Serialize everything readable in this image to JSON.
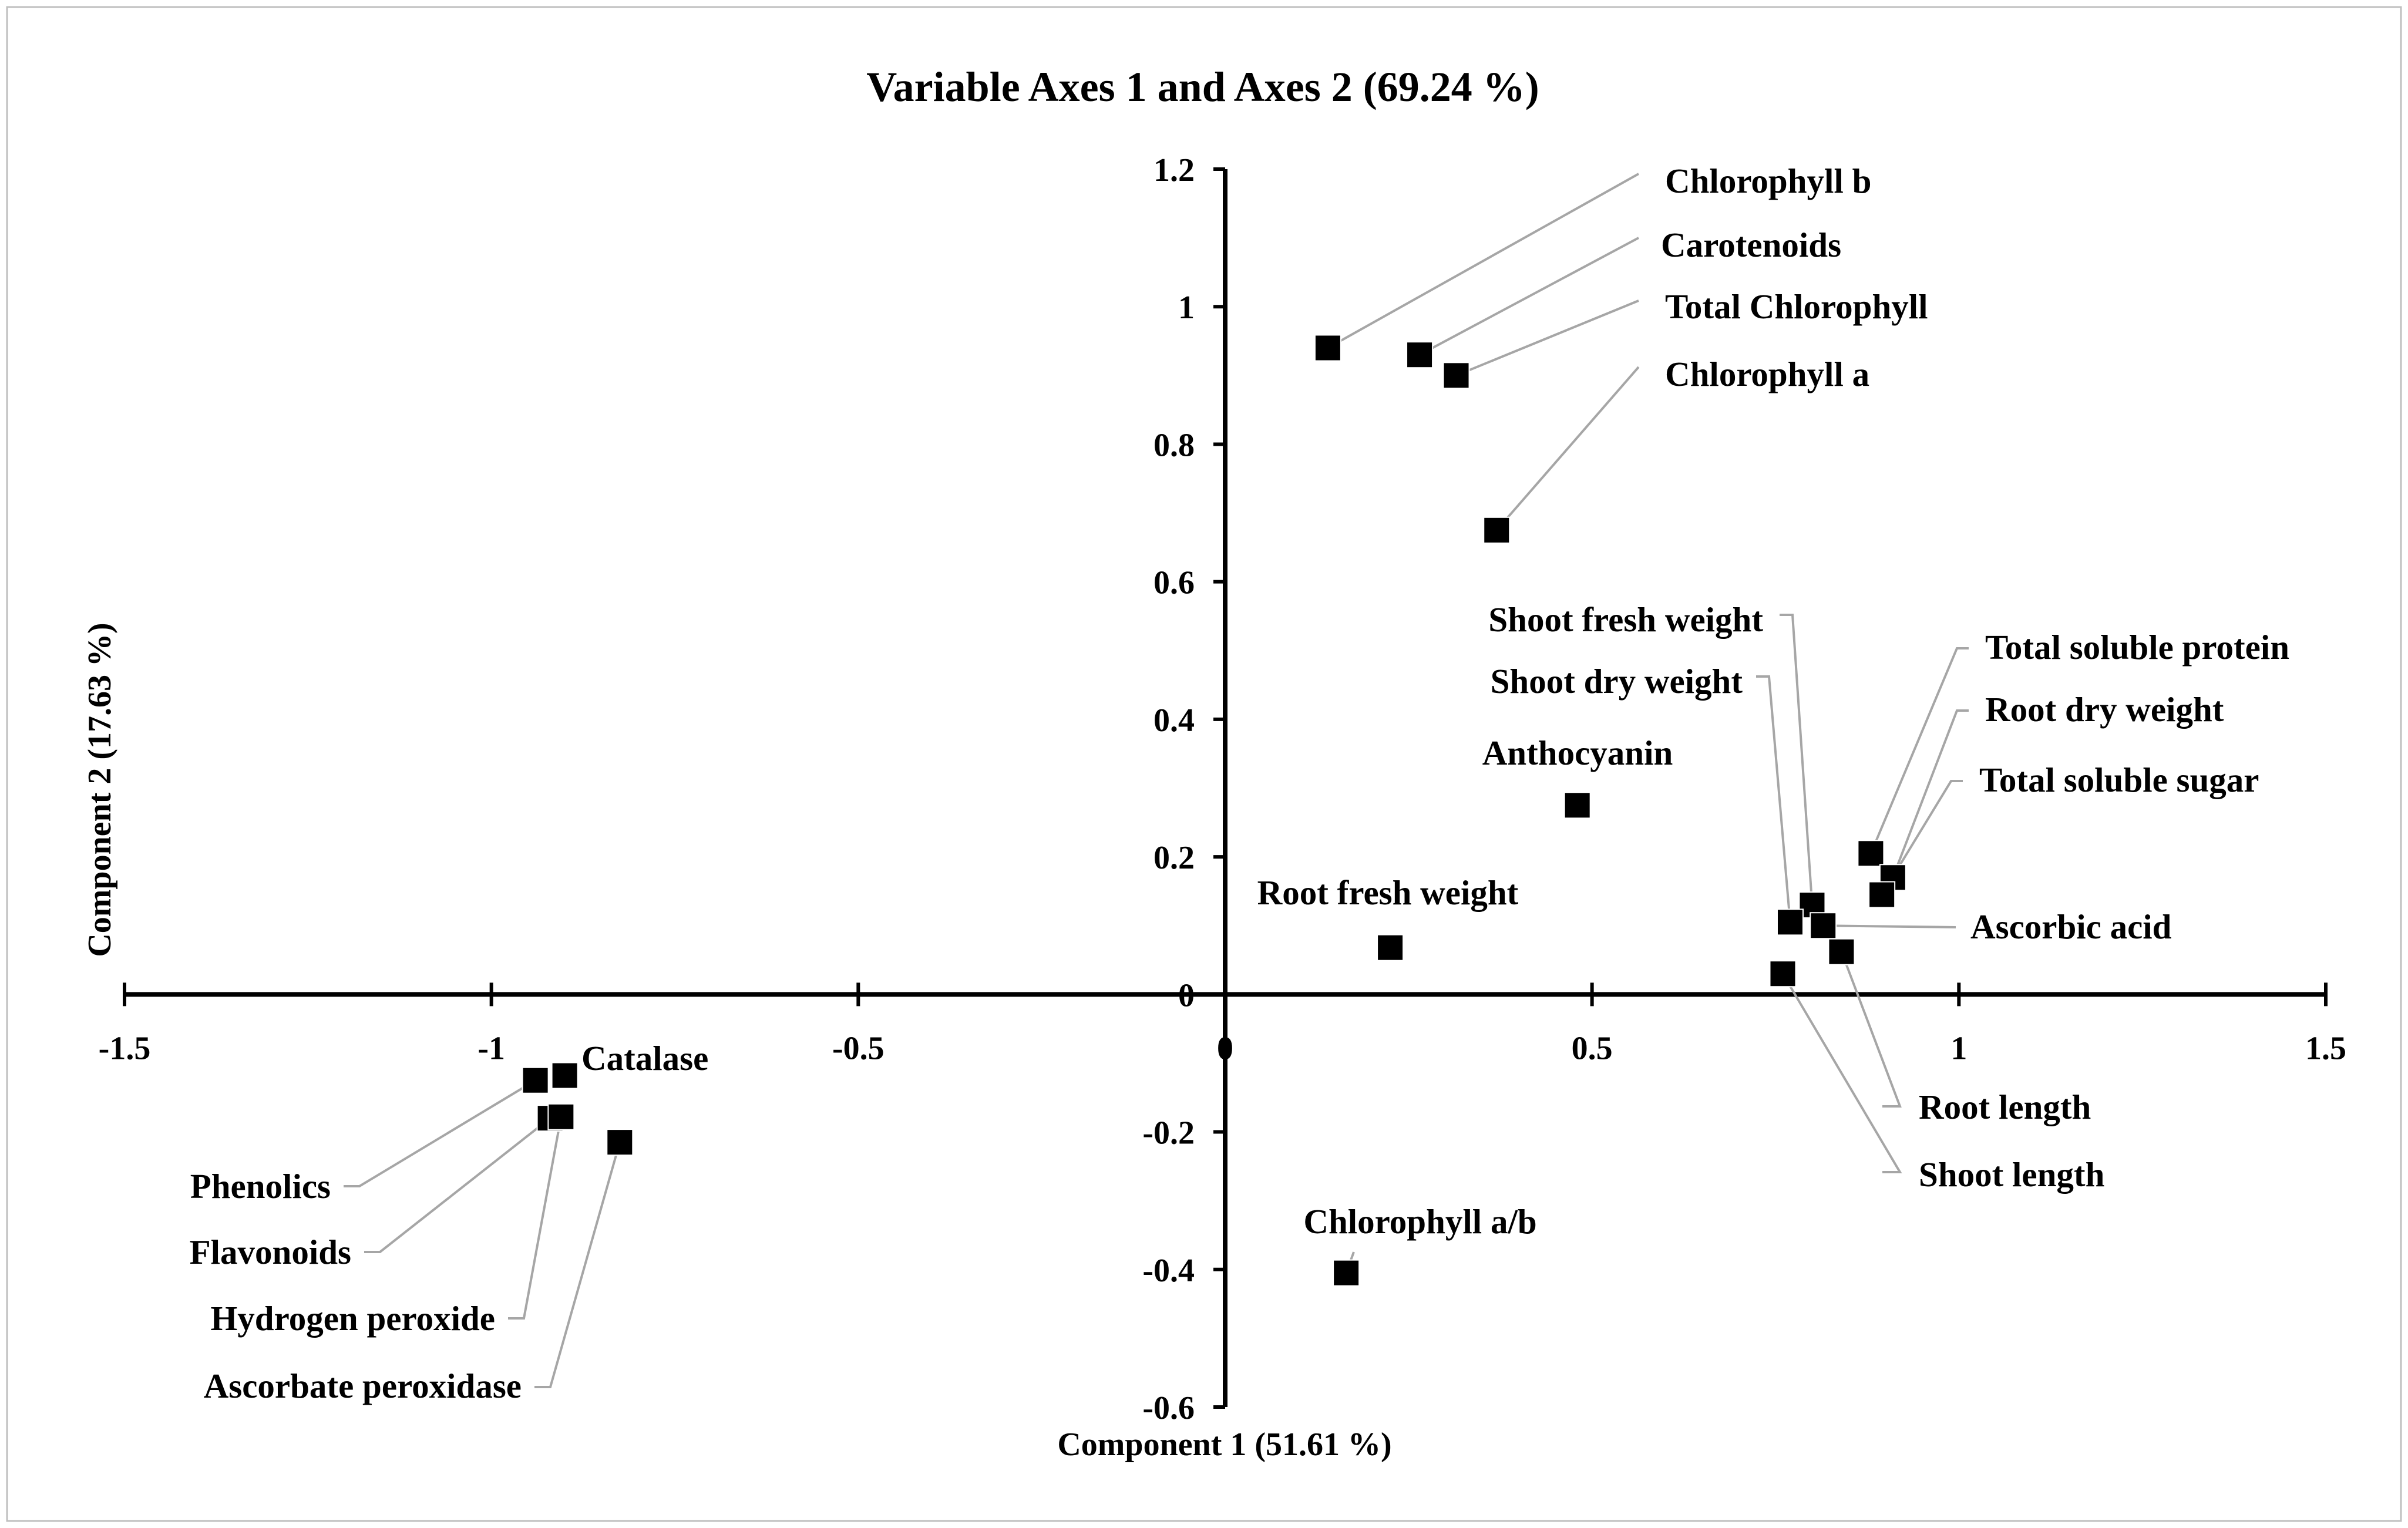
{
  "chart_data": {
    "type": "scatter",
    "title": "Variable Axes 1 and Axes 2 (69.24 %)",
    "xlabel": "Component 1 (51.61 %)",
    "ylabel": "Component 2 (17.63 %)",
    "xlim": [
      -1.5,
      1.5
    ],
    "ylim": [
      -0.6,
      1.2
    ],
    "x_ticks": [
      {
        "value": -1.5,
        "label": "-1.5"
      },
      {
        "value": -1,
        "label": "-1"
      },
      {
        "value": -0.5,
        "label": "-0.5"
      },
      {
        "value": 0,
        "label": "0"
      },
      {
        "value": 0.5,
        "label": "0.5"
      },
      {
        "value": 1,
        "label": "1"
      },
      {
        "value": 1.5,
        "label": "1.5"
      }
    ],
    "y_ticks": [
      {
        "value": -0.6,
        "label": "-0.6"
      },
      {
        "value": -0.4,
        "label": "-0.4"
      },
      {
        "value": -0.2,
        "label": "-0.2"
      },
      {
        "value": 0,
        "label": "0"
      },
      {
        "value": 0.2,
        "label": "0.2"
      },
      {
        "value": 0.4,
        "label": "0.4"
      },
      {
        "value": 0.6,
        "label": "0.6"
      },
      {
        "value": 0.8,
        "label": "0.8"
      },
      {
        "value": 1,
        "label": "1"
      },
      {
        "value": 1.2,
        "label": "1.2"
      }
    ],
    "points": [
      {
        "label": "Chlorophyll b",
        "x": 0.14,
        "y": 0.94
      },
      {
        "label": "Carotenoids",
        "x": 0.265,
        "y": 0.93
      },
      {
        "label": "Total Chlorophyll",
        "x": 0.315,
        "y": 0.9
      },
      {
        "label": "Chlorophyll a",
        "x": 0.37,
        "y": 0.675
      },
      {
        "label": "Anthocyanin",
        "x": 0.48,
        "y": 0.275
      },
      {
        "label": "Root fresh weight",
        "x": 0.225,
        "y": 0.068
      },
      {
        "label": "Chlorophyll a/b",
        "x": 0.165,
        "y": -0.405
      },
      {
        "label": "Shoot fresh weight",
        "x": 0.8,
        "y": 0.13
      },
      {
        "label": "Shoot dry weight",
        "x": 0.77,
        "y": 0.105
      },
      {
        "label": "Total soluble protein",
        "x": 0.88,
        "y": 0.205
      },
      {
        "label": "Root dry weight",
        "x": 0.91,
        "y": 0.17
      },
      {
        "label": "Total soluble sugar",
        "x": 0.895,
        "y": 0.145
      },
      {
        "label": "Ascorbic acid",
        "x": 0.815,
        "y": 0.1
      },
      {
        "label": "Root length",
        "x": 0.84,
        "y": 0.062
      },
      {
        "label": "Shoot length",
        "x": 0.76,
        "y": 0.03
      },
      {
        "label": "Catalase",
        "x": -0.9,
        "y": -0.118
      },
      {
        "label": "Phenolics",
        "x": -0.94,
        "y": -0.125
      },
      {
        "label": "Flavonoids",
        "x": -0.92,
        "y": -0.18
      },
      {
        "label": "Hydrogen peroxide",
        "x": -0.905,
        "y": -0.178
      },
      {
        "label": "Ascorbate peroxidase",
        "x": -0.825,
        "y": -0.215
      }
    ]
  }
}
